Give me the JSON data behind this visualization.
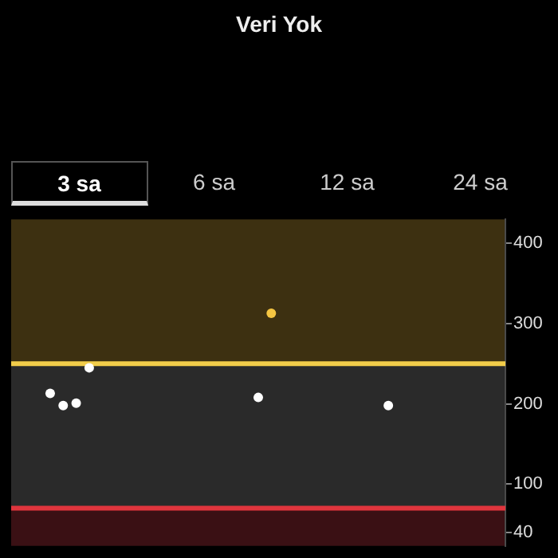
{
  "chart_data": {
    "type": "scatter",
    "title": "Veri Yok",
    "annotations": [
      "3 sa",
      "6 sa",
      "12 sa",
      "24 sa"
    ],
    "categories": [
      null,
      null,
      null,
      null,
      null,
      null,
      null,
      null,
      null,
      null,
      null,
      null,
      null,
      null,
      null,
      null,
      null,
      null,
      null,
      null,
      null,
      null,
      null,
      null,
      null,
      null,
      null,
      null,
      null,
      null,
      null,
      null,
      null,
      null,
      null,
      null,
      null,
      null,
      null
    ],
    "values": [
      null,
      null,
      null,
      213,
      198,
      201,
      245,
      null,
      null,
      null,
      null,
      null,
      null,
      null,
      null,
      null,
      null,
      null,
      null,
      208,
      313,
      null,
      null,
      null,
      null,
      null,
      null,
      null,
      null,
      198,
      null,
      null,
      null,
      null,
      null,
      null,
      null,
      null,
      null
    ],
    "colors": [
      null,
      null,
      null,
      "#ffffff",
      "#ffffff",
      "#ffffff",
      "#ffffff",
      null,
      null,
      null,
      null,
      null,
      null,
      null,
      null,
      null,
      null,
      null,
      null,
      "#ffffff",
      "#f5c542",
      null,
      null,
      null,
      null,
      null,
      null,
      null,
      null,
      "#ffffff",
      null,
      null,
      null,
      null,
      null,
      null,
      null,
      null,
      null
    ],
    "ylim": [
      23,
      430
    ],
    "yticks": [
      40,
      100,
      200,
      300,
      400
    ],
    "ref_lines": [
      {
        "axis": "y",
        "value": 250,
        "color": "#f2cd4a"
      },
      {
        "axis": "y",
        "value": 70,
        "color": "#e0353d"
      }
    ],
    "bands": [
      {
        "axis": "y",
        "from": 250,
        "to": 430,
        "color": "#3d3011"
      },
      {
        "axis": "y",
        "from": 70,
        "to": 250,
        "color": "#2a2a2a"
      },
      {
        "axis": "y",
        "from": 23,
        "to": 70,
        "color": "#3a1014"
      }
    ],
    "grid": false,
    "tick_labels": "y",
    "marker": "circle",
    "legend": false
  }
}
